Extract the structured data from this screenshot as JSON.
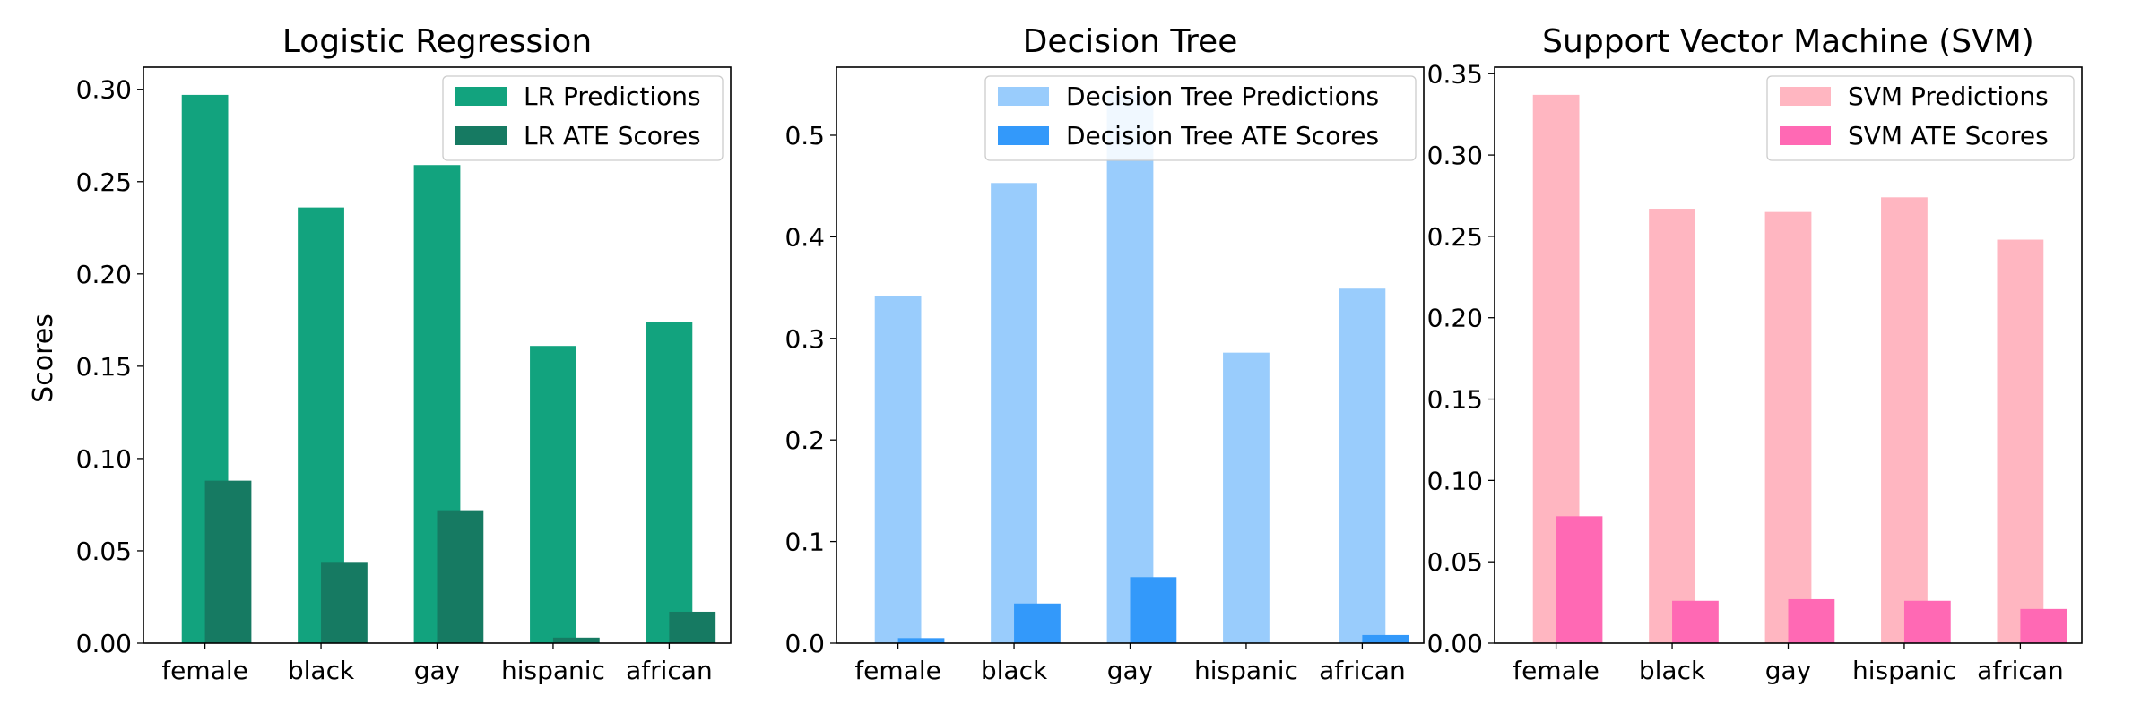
{
  "figure": {
    "ylabel": "Scores"
  },
  "chart_data": [
    {
      "type": "bar",
      "title": "Logistic Regression",
      "xlabel": "",
      "ylabel": "Scores",
      "categories": [
        "female",
        "black",
        "gay",
        "hispanic",
        "african"
      ],
      "ylim": [
        0,
        0.312
      ],
      "yticks": [
        "0.00",
        "0.05",
        "0.10",
        "0.15",
        "0.20",
        "0.25",
        "0.30"
      ],
      "ytick_values": [
        0,
        0.05,
        0.1,
        0.15,
        0.2,
        0.25,
        0.3
      ],
      "legend_position": "top-right",
      "series": [
        {
          "name": "LR Predictions",
          "color": "#12a37e",
          "values": [
            0.297,
            0.236,
            0.259,
            0.161,
            0.174
          ]
        },
        {
          "name": "LR ATE Scores",
          "color": "#167a62",
          "values": [
            0.088,
            0.044,
            0.072,
            0.003,
            0.017
          ]
        }
      ]
    },
    {
      "type": "bar",
      "title": "Decision Tree",
      "xlabel": "",
      "ylabel": "",
      "categories": [
        "female",
        "black",
        "gay",
        "hispanic",
        "african"
      ],
      "ylim": [
        0,
        0.567
      ],
      "yticks": [
        "0.0",
        "0.1",
        "0.2",
        "0.3",
        "0.4",
        "0.5"
      ],
      "ytick_values": [
        0,
        0.1,
        0.2,
        0.3,
        0.4,
        0.5
      ],
      "legend_position": "top-right",
      "series": [
        {
          "name": "Decision Tree Predictions",
          "color": "#99ccfc",
          "values": [
            0.342,
            0.453,
            0.54,
            0.286,
            0.349
          ]
        },
        {
          "name": "Decision Tree ATE Scores",
          "color": "#3399fa",
          "values": [
            0.005,
            0.039,
            0.065,
            0.0,
            0.008
          ]
        }
      ]
    },
    {
      "type": "bar",
      "title": "Support Vector Machine (SVM)",
      "xlabel": "",
      "ylabel": "",
      "categories": [
        "female",
        "black",
        "gay",
        "hispanic",
        "african"
      ],
      "ylim": [
        0,
        0.354
      ],
      "yticks": [
        "0.00",
        "0.05",
        "0.10",
        "0.15",
        "0.20",
        "0.25",
        "0.30",
        "0.35"
      ],
      "ytick_values": [
        0,
        0.05,
        0.1,
        0.15,
        0.2,
        0.25,
        0.3,
        0.35
      ],
      "legend_position": "top-right",
      "series": [
        {
          "name": "SVM Predictions",
          "color": "#ffb6c1",
          "values": [
            0.337,
            0.267,
            0.265,
            0.274,
            0.248
          ]
        },
        {
          "name": "SVM ATE Scores",
          "color": "#ff69b4",
          "values": [
            0.078,
            0.026,
            0.027,
            0.026,
            0.021
          ]
        }
      ]
    }
  ]
}
